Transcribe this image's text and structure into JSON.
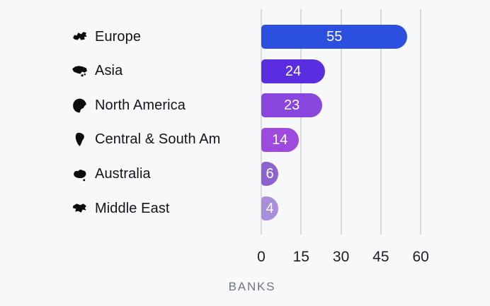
{
  "chart_data": {
    "type": "bar",
    "orientation": "horizontal",
    "title": "",
    "xlabel": "BANKS",
    "ylabel": "",
    "x_ticks": [
      0,
      15,
      30,
      45,
      60
    ],
    "xlim": [
      0,
      62
    ],
    "grid": "vertical",
    "legend": "none",
    "categories": [
      "Europe",
      "Asia",
      "North America",
      "Central & South Am",
      "Australia",
      "Middle East"
    ],
    "values": [
      55,
      24,
      23,
      14,
      6,
      4
    ],
    "rows": [
      {
        "label": "Europe",
        "value": 55,
        "icon": "europe-map-icon",
        "color": "#2b50df"
      },
      {
        "label": "Asia",
        "value": 24,
        "icon": "asia-map-icon",
        "color": "#5a2ee0"
      },
      {
        "label": "North America",
        "value": 23,
        "icon": "north-america-map-icon",
        "color": "#8846df"
      },
      {
        "label": "Central & South Am",
        "value": 14,
        "icon": "south-america-map-icon",
        "color": "#9f4ade"
      },
      {
        "label": "Australia",
        "value": 6,
        "icon": "australia-map-icon",
        "color": "#8c62cf"
      },
      {
        "label": "Middle East",
        "value": 4,
        "icon": "middle-east-map-icon",
        "color": "#a88edb"
      }
    ]
  },
  "colors": {
    "background": "#f7f8fa",
    "gridline": "#d9dbe0",
    "tick_label": "#1b1d22",
    "axis_label": "#72767e",
    "bar_value_text": "#ffffff",
    "row_label": "#131519",
    "icon": "#0b0c0e"
  }
}
